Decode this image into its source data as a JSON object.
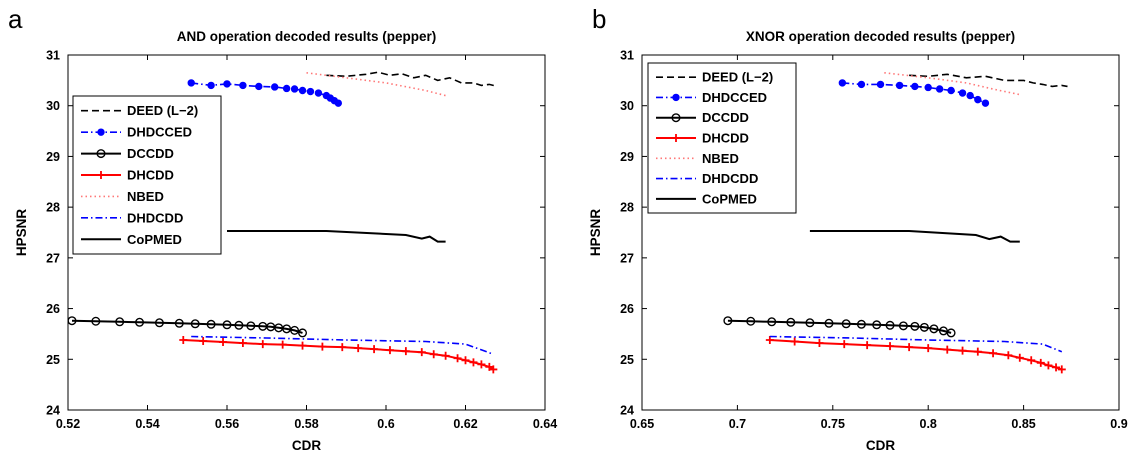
{
  "chart_data": [
    {
      "type": "line",
      "panel_label": "a",
      "title": "AND operation decoded results (pepper)",
      "xlabel": "CDR",
      "ylabel": "HPSNR",
      "xlim": [
        0.52,
        0.64
      ],
      "ylim": [
        24,
        31
      ],
      "xticks": [
        "0.52",
        "0.54",
        "0.56",
        "0.58",
        "0.6",
        "0.62",
        "0.64"
      ],
      "yticks": [
        "24",
        "25",
        "26",
        "27",
        "28",
        "29",
        "30",
        "31"
      ],
      "grid": false,
      "legend_position": "left",
      "series": [
        {
          "name": "DEED (L−2)",
          "color": "#000000",
          "dash": "dashed",
          "marker": "none",
          "x": [
            0.585,
            0.59,
            0.595,
            0.598,
            0.601,
            0.604,
            0.607,
            0.61,
            0.613,
            0.616,
            0.619,
            0.622,
            0.624,
            0.626,
            0.628
          ],
          "y": [
            30.6,
            30.58,
            30.62,
            30.66,
            30.6,
            30.63,
            30.55,
            30.6,
            30.5,
            30.55,
            30.45,
            30.45,
            30.4,
            30.42,
            30.38
          ]
        },
        {
          "name": "DHDCCED",
          "color": "#0000ff",
          "dash": "dashdot",
          "marker": "dot",
          "x": [
            0.551,
            0.556,
            0.56,
            0.564,
            0.568,
            0.572,
            0.575,
            0.577,
            0.579,
            0.581,
            0.583,
            0.585,
            0.586,
            0.587,
            0.588
          ],
          "y": [
            30.45,
            30.4,
            30.43,
            30.4,
            30.38,
            30.37,
            30.34,
            30.33,
            30.3,
            30.28,
            30.25,
            30.2,
            30.15,
            30.1,
            30.05
          ]
        },
        {
          "name": "DCCDD",
          "color": "#000000",
          "dash": "solid",
          "marker": "circle",
          "x": [
            0.521,
            0.527,
            0.533,
            0.538,
            0.543,
            0.548,
            0.552,
            0.556,
            0.56,
            0.563,
            0.566,
            0.569,
            0.571,
            0.573,
            0.575,
            0.577,
            0.579
          ],
          "y": [
            25.76,
            25.75,
            25.74,
            25.73,
            25.72,
            25.71,
            25.7,
            25.69,
            25.68,
            25.67,
            25.66,
            25.65,
            25.64,
            25.62,
            25.6,
            25.57,
            25.52
          ]
        },
        {
          "name": "DHCDD",
          "color": "#ff0000",
          "dash": "solid",
          "marker": "plus",
          "x": [
            0.549,
            0.554,
            0.559,
            0.564,
            0.569,
            0.574,
            0.579,
            0.584,
            0.589,
            0.593,
            0.597,
            0.601,
            0.605,
            0.609,
            0.612,
            0.615,
            0.618,
            0.62,
            0.622,
            0.624,
            0.626,
            0.627
          ],
          "y": [
            25.38,
            25.36,
            25.34,
            25.32,
            25.3,
            25.29,
            25.27,
            25.25,
            25.24,
            25.22,
            25.2,
            25.18,
            25.16,
            25.14,
            25.1,
            25.07,
            25.02,
            24.98,
            24.94,
            24.9,
            24.85,
            24.8
          ]
        },
        {
          "name": "NBED",
          "color": "#ff7777",
          "dash": "dotted",
          "marker": "none",
          "x": [
            0.58,
            0.59,
            0.6,
            0.61,
            0.615
          ],
          "y": [
            30.65,
            30.55,
            30.45,
            30.3,
            30.2
          ]
        },
        {
          "name": "DHDCDD",
          "color": "#0000ff",
          "dash": "dashdot",
          "marker": "none",
          "x": [
            0.551,
            0.57,
            0.59,
            0.61,
            0.62,
            0.627
          ],
          "y": [
            25.45,
            25.42,
            25.38,
            25.35,
            25.3,
            25.1
          ]
        },
        {
          "name": "CoPMED",
          "color": "#000000",
          "dash": "solid",
          "marker": "none",
          "x": [
            0.56,
            0.585,
            0.605,
            0.609,
            0.611,
            0.613,
            0.615
          ],
          "y": [
            27.53,
            27.53,
            27.45,
            27.38,
            27.42,
            27.32,
            27.32
          ]
        }
      ]
    },
    {
      "type": "line",
      "panel_label": "b",
      "title": "XNOR operation decoded results (pepper)",
      "xlabel": "CDR",
      "ylabel": "HPSNR",
      "xlim": [
        0.65,
        0.9
      ],
      "ylim": [
        24,
        31
      ],
      "xticks": [
        "0.65",
        "0.7",
        "0.75",
        "0.8",
        "0.85",
        "0.9"
      ],
      "yticks": [
        "24",
        "25",
        "26",
        "27",
        "28",
        "29",
        "30",
        "31"
      ],
      "grid": false,
      "legend_position": "top-left",
      "series": [
        {
          "name": "DEED (L−2)",
          "color": "#000000",
          "dash": "dashed",
          "marker": "none",
          "x": [
            0.79,
            0.8,
            0.81,
            0.82,
            0.83,
            0.84,
            0.85,
            0.855,
            0.86,
            0.865,
            0.87,
            0.873
          ],
          "y": [
            30.6,
            30.58,
            30.62,
            30.55,
            30.58,
            30.5,
            30.5,
            30.45,
            30.42,
            30.38,
            30.4,
            30.38
          ]
        },
        {
          "name": "DHDCCED",
          "color": "#0000ff",
          "dash": "dashdot",
          "marker": "dot",
          "x": [
            0.755,
            0.765,
            0.775,
            0.785,
            0.793,
            0.8,
            0.806,
            0.812,
            0.818,
            0.822,
            0.826,
            0.83
          ],
          "y": [
            30.45,
            30.42,
            30.42,
            30.4,
            30.38,
            30.36,
            30.33,
            30.3,
            30.25,
            30.2,
            30.12,
            30.05
          ]
        },
        {
          "name": "DCCDD",
          "color": "#000000",
          "dash": "solid",
          "marker": "circle",
          "x": [
            0.695,
            0.707,
            0.718,
            0.728,
            0.738,
            0.748,
            0.757,
            0.765,
            0.773,
            0.78,
            0.787,
            0.793,
            0.798,
            0.803,
            0.808,
            0.812
          ],
          "y": [
            25.76,
            25.75,
            25.74,
            25.73,
            25.72,
            25.71,
            25.7,
            25.69,
            25.68,
            25.67,
            25.66,
            25.65,
            25.63,
            25.6,
            25.56,
            25.52
          ]
        },
        {
          "name": "DHCDD",
          "color": "#ff0000",
          "dash": "solid",
          "marker": "plus",
          "x": [
            0.717,
            0.73,
            0.743,
            0.756,
            0.768,
            0.78,
            0.79,
            0.8,
            0.81,
            0.818,
            0.826,
            0.834,
            0.842,
            0.848,
            0.854,
            0.859,
            0.863,
            0.867,
            0.87
          ],
          "y": [
            25.38,
            25.35,
            25.32,
            25.3,
            25.28,
            25.26,
            25.24,
            25.22,
            25.19,
            25.17,
            25.15,
            25.12,
            25.08,
            25.03,
            24.98,
            24.93,
            24.88,
            24.84,
            24.8
          ]
        },
        {
          "name": "NBED",
          "color": "#ff7777",
          "dash": "dotted",
          "marker": "none",
          "x": [
            0.777,
            0.8,
            0.82,
            0.835,
            0.848
          ],
          "y": [
            30.65,
            30.55,
            30.45,
            30.32,
            30.22
          ]
        },
        {
          "name": "DHDCDD",
          "color": "#0000ff",
          "dash": "dashdot",
          "marker": "none",
          "x": [
            0.717,
            0.76,
            0.8,
            0.84,
            0.86,
            0.87
          ],
          "y": [
            25.45,
            25.42,
            25.38,
            25.35,
            25.3,
            25.15
          ]
        },
        {
          "name": "CoPMED",
          "color": "#000000",
          "dash": "solid",
          "marker": "none",
          "x": [
            0.738,
            0.79,
            0.825,
            0.832,
            0.838,
            0.843,
            0.848
          ],
          "y": [
            27.53,
            27.53,
            27.45,
            27.37,
            27.42,
            27.32,
            27.32
          ]
        }
      ]
    }
  ]
}
